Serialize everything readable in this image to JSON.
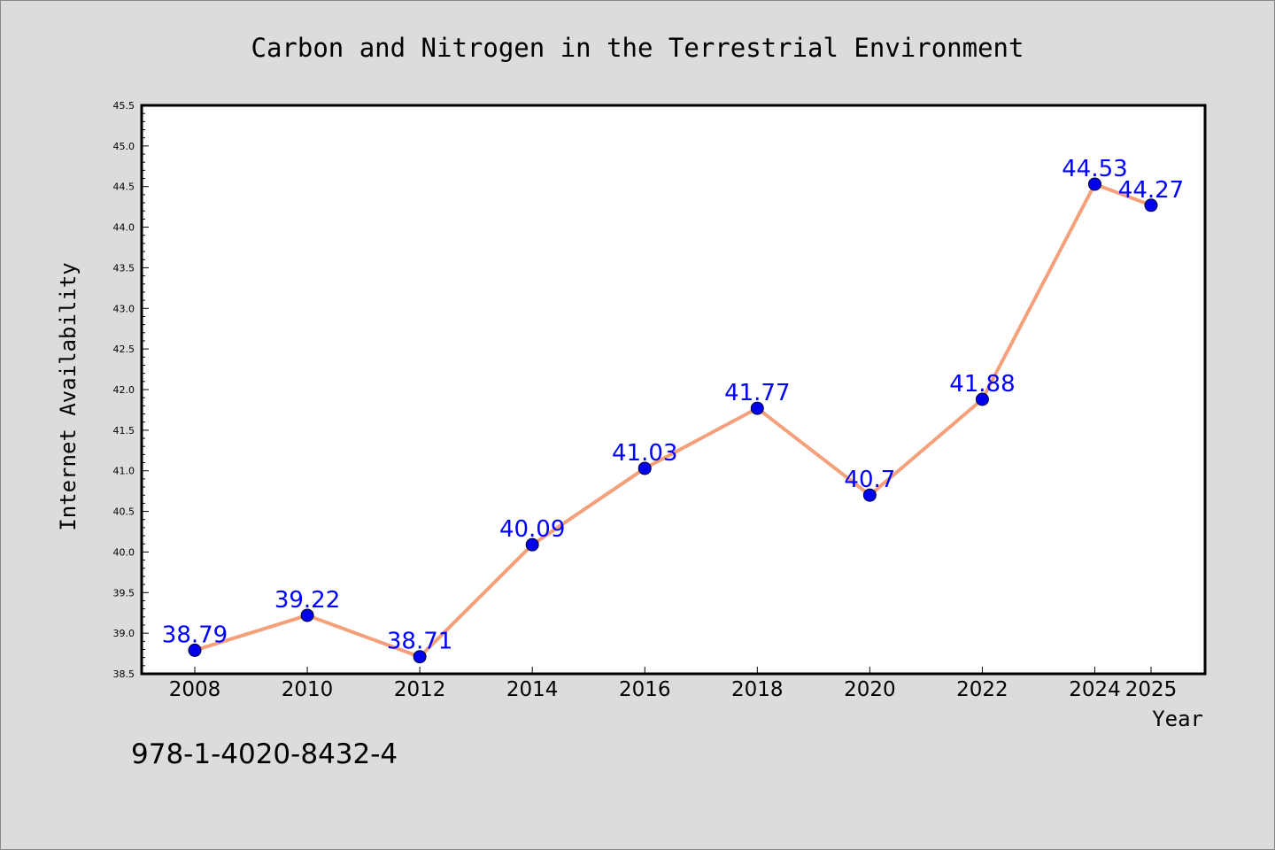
{
  "chart_data": {
    "type": "line",
    "title": "Carbon and Nitrogen in the Terrestrial Environment",
    "xlabel": "Year",
    "ylabel": "Internet Availability",
    "categories": [
      "2008",
      "2010",
      "2012",
      "2014",
      "2016",
      "2018",
      "2020",
      "2022",
      "2024",
      "2025"
    ],
    "series": [
      {
        "values": [
          38.79,
          39.22,
          38.71,
          40.09,
          41.03,
          41.77,
          40.7,
          41.88,
          44.53,
          44.27
        ],
        "labels": [
          "38.79",
          "39.22",
          "38.71",
          "40.09",
          "41.03",
          "41.77",
          "40.7",
          "41.88",
          "44.53",
          "44.27"
        ]
      }
    ],
    "ylim": [
      38.5,
      45.5
    ],
    "yticks": [
      "38.5",
      "39.0",
      "39.5",
      "40.0",
      "40.5",
      "41.0",
      "41.5",
      "42.0",
      "42.5",
      "43.0",
      "43.5",
      "44.0",
      "44.5",
      "45.0",
      "45.5"
    ],
    "grid": false,
    "legend": "none",
    "colors": {
      "line": "#f4a07a",
      "marker": "#0000ee",
      "label": "#0000ff",
      "background": "#dcdcdc",
      "plot_background": "#ffffff"
    }
  },
  "footer": {
    "isbn": "978-1-4020-8432-4"
  }
}
